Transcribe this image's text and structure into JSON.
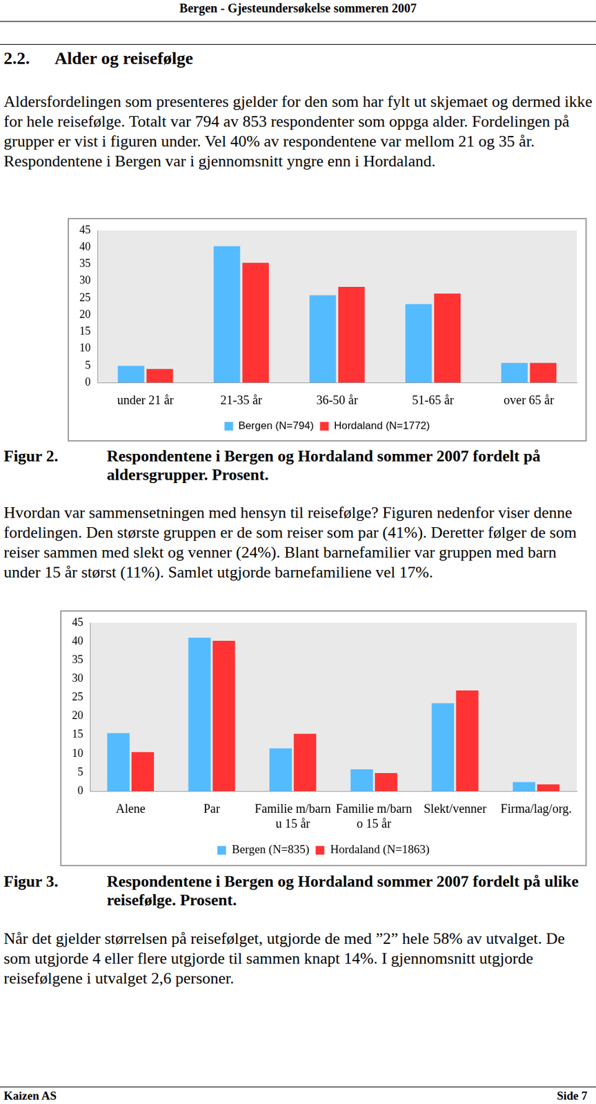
{
  "header": "Bergen - Gjesteundersøkelse sommeren 2007",
  "section": {
    "number": "2.2.",
    "title": "Alder og reisefølge"
  },
  "paragraphs": [
    "Aldersfordelingen som presenteres gjelder for den som har fylt ut skjemaet og dermed ikke for hele reisefølge. Totalt var 794 av 853 respondenter som oppga alder. Fordelingen på grupper er vist i figuren under. Vel 40% av respondentene var mellom 21 og 35 år. Respondentene i Bergen var i gjennomsnitt yngre enn i Hordaland.",
    "Hvordan var sammensetningen med hensyn til reisefølge? Figuren nedenfor viser denne fordelingen. Den største gruppen er de som reiser som par (41%). Deretter følger de som reiser sammen med slekt og venner (24%). Blant barnefamilier var gruppen med barn under 15 år størst (11%). Samlet utgjorde barnefamiliene vel 17%.",
    "Når det gjelder størrelsen på reisefølget, utgjorde de med ”2” hele 58% av utvalget. De som utgjorde 4 eller flere utgjorde til sammen knapt 14%. I gjennomsnitt utgjorde reisefølgene i utvalget 2,6 personer."
  ],
  "figure_captions": [
    {
      "label": "Figur 2.",
      "text": "Respondentene i Bergen og Hordaland sommer 2007 fordelt på aldersgrupper. Prosent."
    },
    {
      "label": "Figur 3.",
      "text": "Respondentene i Bergen og Hordaland sommer 2007 fordelt på ulike reisefølge. Prosent."
    }
  ],
  "chart_data": [
    {
      "type": "bar",
      "categories": [
        "under 21 år",
        "21-35 år",
        "36-50 år",
        "51-65 år",
        "over 65 år"
      ],
      "series": [
        {
          "name": "Bergen (N=794)",
          "color": "#55bbff",
          "values": [
            4.9,
            40.3,
            25.8,
            23.2,
            5.8
          ]
        },
        {
          "name": "Hordaland (N=1772)",
          "color": "#ff3333",
          "values": [
            4.0,
            35.4,
            28.3,
            26.3,
            5.8
          ]
        }
      ],
      "ylim": [
        0,
        45
      ],
      "yticks": [
        0,
        5,
        10,
        15,
        20,
        25,
        30,
        35,
        40,
        45
      ],
      "grid": false,
      "legend": "bottom"
    },
    {
      "type": "bar",
      "categories": [
        "Alene",
        "Par",
        [
          "Familie m/barn",
          "u 15 år"
        ],
        [
          "Familie m/barn",
          "o 15 år"
        ],
        "Slekt/venner",
        "Firma/lag/org."
      ],
      "series": [
        {
          "name": "Bergen (N=835)",
          "color": "#55bbff",
          "values": [
            15.5,
            41.0,
            11.4,
            5.8,
            23.5,
            2.4
          ]
        },
        {
          "name": "Hordaland (N=1863)",
          "color": "#ff3333",
          "values": [
            10.4,
            40.2,
            15.3,
            4.8,
            26.9,
            1.8
          ]
        }
      ],
      "ylim": [
        0,
        45
      ],
      "yticks": [
        0,
        5,
        10,
        15,
        20,
        25,
        30,
        35,
        40,
        45
      ],
      "grid": false,
      "legend": "bottom"
    }
  ],
  "footer": {
    "left": "Kaizen AS",
    "right": "Side 7"
  }
}
